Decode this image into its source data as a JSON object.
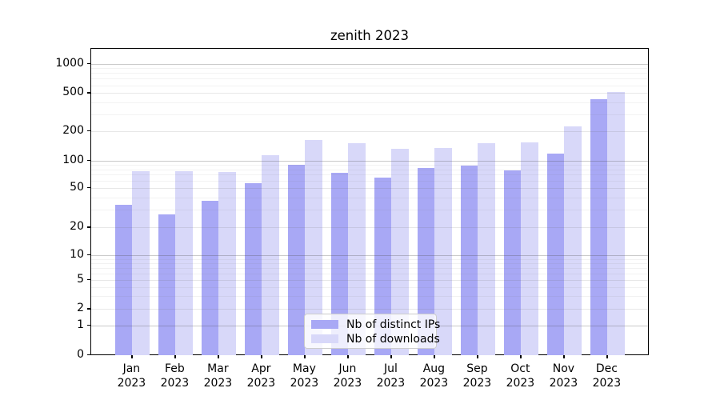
{
  "chart_data": {
    "type": "bar",
    "title": "zenith 2023",
    "categories": [
      "Jan",
      "Feb",
      "Mar",
      "Apr",
      "May",
      "Jun",
      "Jul",
      "Aug",
      "Sep",
      "Oct",
      "Nov",
      "Dec"
    ],
    "category_year": "2023",
    "series": [
      {
        "name": "Nb of distinct IPs",
        "color": "#a8a8f5",
        "values": [
          34,
          27,
          37,
          56,
          90,
          74,
          65,
          83,
          89,
          78,
          118,
          432
        ]
      },
      {
        "name": "Nb of downloads",
        "color": "#d8d8f9",
        "values": [
          76,
          76,
          75,
          113,
          162,
          150,
          131,
          134,
          149,
          152,
          222,
          512
        ]
      }
    ],
    "xlabel": "",
    "ylabel": "",
    "y_axis_scale": "symlog",
    "y_ticks": [
      0,
      1,
      2,
      5,
      10,
      20,
      50,
      100,
      200,
      500,
      1000
    ],
    "ylim": [
      0,
      1400
    ],
    "grid": true,
    "legend_position": "lower-center-inside"
  }
}
